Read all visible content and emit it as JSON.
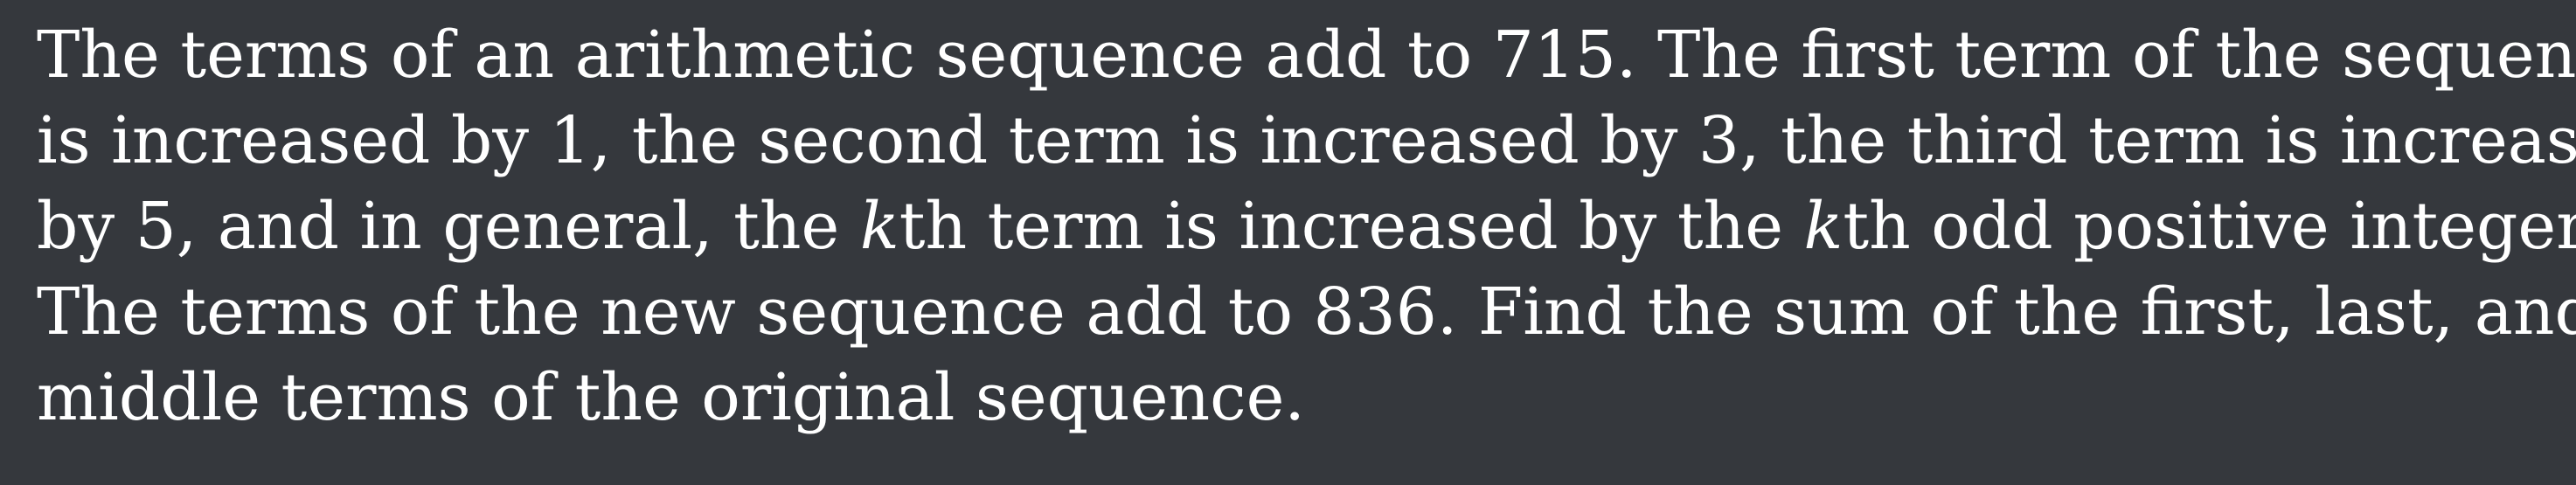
{
  "problem": {
    "line1": "The terms of an arithmetic sequence add to 715. The first term of the sequence",
    "line2": "is increased by 1, the second term is increased by 3, the third term is increased",
    "line3_a": "by 5, and in general, the ",
    "var_k": "k",
    "line3_b": "th term is increased by the ",
    "line3_c": "th odd positive integer.",
    "line4": "The terms of the new sequence add to 836. Find the sum of the first, last, and",
    "line5": "middle terms of the original sequence."
  }
}
